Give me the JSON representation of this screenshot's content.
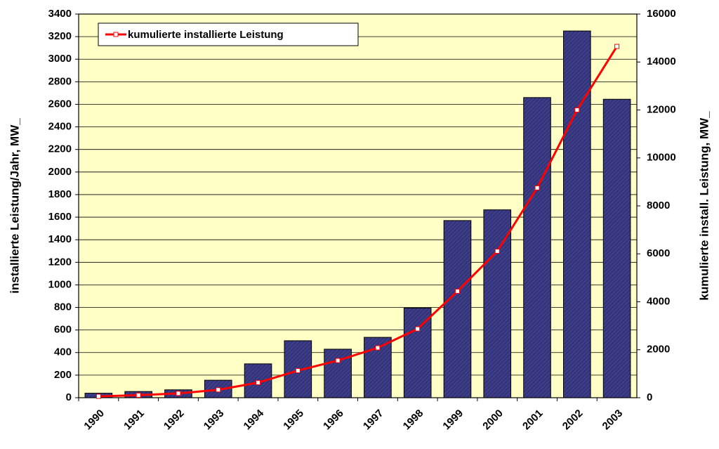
{
  "chart_data": {
    "type": "bar_line",
    "y_label": "installierte Leistung/Jahr, MW_",
    "y2_label": "kumulierte install. Leistung, MW_",
    "categories": [
      "1990",
      "1991",
      "1992",
      "1993",
      "1994",
      "1995",
      "1996",
      "1997",
      "1998",
      "1999",
      "2000",
      "2001",
      "2002",
      "2003"
    ],
    "series": [
      {
        "color": "#34347c",
        "values": [
          40,
          55,
          70,
          155,
          300,
          505,
          430,
          535,
          795,
          1570,
          1665,
          2660,
          3250,
          2645
        ]
      },
      {
        "name": "kumulierte installierte Leistung",
        "color": "#ff0000",
        "axis": "y2",
        "values": [
          56,
          106,
          180,
          330,
          630,
          1130,
          1550,
          2080,
          2870,
          4440,
          6110,
          8750,
          12000,
          14650
        ]
      }
    ],
    "ylim": [
      0,
      3400
    ],
    "yticks": [
      0,
      200,
      400,
      600,
      800,
      1000,
      1200,
      1400,
      1600,
      1800,
      2000,
      2200,
      2400,
      2600,
      2800,
      3000,
      3200,
      3400
    ],
    "y2lim": [
      0,
      16000
    ],
    "y2ticks": [
      0,
      2000,
      4000,
      6000,
      8000,
      10000,
      12000,
      14000,
      16000
    ],
    "grid": true,
    "legend": "top-left",
    "background": "#ffffc6"
  }
}
